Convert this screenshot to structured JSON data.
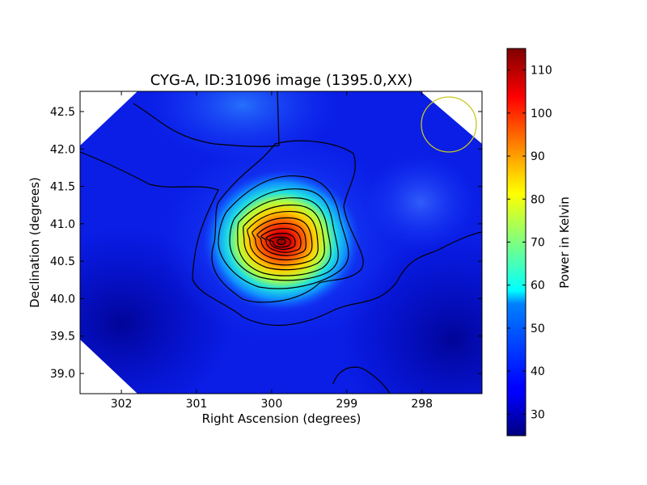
{
  "chart_data": {
    "type": "heatmap",
    "title": "CYG-A, ID:31096 image (1395.0,XX)",
    "xlabel": "Right Ascension (degrees)",
    "ylabel": "Declination (degrees)",
    "xlim": [
      302.55,
      297.2
    ],
    "ylim": [
      38.73,
      42.77
    ],
    "x_ticks": [
      302,
      301,
      300,
      299,
      298
    ],
    "x_tick_labels": [
      "302",
      "301",
      "300",
      "299",
      "298"
    ],
    "y_ticks": [
      39.0,
      39.5,
      40.0,
      40.5,
      41.0,
      41.5,
      42.0,
      42.5
    ],
    "y_tick_labels": [
      "39.0",
      "39.5",
      "40.0",
      "40.5",
      "41.0",
      "41.5",
      "42.0",
      "42.5"
    ],
    "colorbar": {
      "label": "Power in Kelvin",
      "range": [
        25,
        115
      ],
      "ticks": [
        30,
        40,
        50,
        60,
        70,
        80,
        90,
        100,
        110
      ],
      "tick_labels": [
        "30",
        "40",
        "50",
        "60",
        "70",
        "80",
        "90",
        "100",
        "110"
      ],
      "colormap": "jet"
    },
    "peak": {
      "ra": 299.85,
      "dec": 40.73,
      "value": 113
    },
    "background_level": 32,
    "beam_circle": {
      "ra": 297.65,
      "dec": 42.3,
      "color": "#c8c81e"
    },
    "contour_color": "#000000"
  }
}
